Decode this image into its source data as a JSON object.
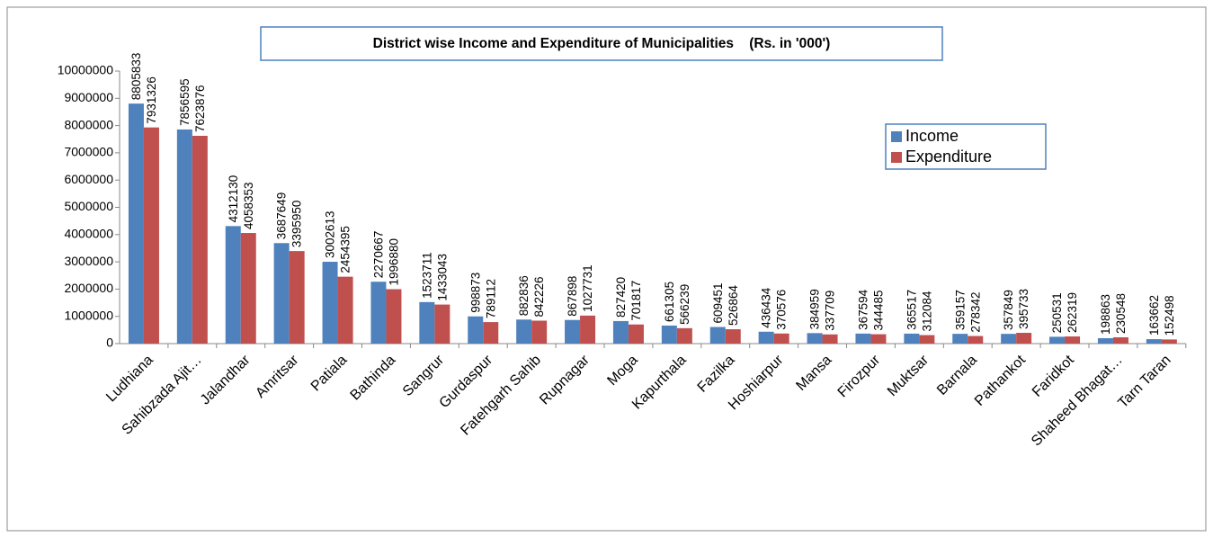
{
  "chart_data": {
    "type": "bar",
    "title": "District wise Income and Expenditure of Municipalities    (Rs. in '000')",
    "categories": [
      "Ludhiana",
      "Sahibzada Ajit…",
      "Jalandhar",
      "Amritsar",
      "Patiala",
      "Bathinda",
      "Sangrur",
      "Gurdaspur",
      "Fatehgarh Sahib",
      "Rupnagar",
      "Moga",
      "Kapurthala",
      "Fazilka",
      "Hoshiarpur",
      "Mansa",
      "Firozpur",
      "Muktsar",
      "Barnala",
      "Pathankot",
      "Faridkot",
      "Shaheed Bhagat…",
      "Tarn Taran"
    ],
    "series": [
      {
        "name": "Income",
        "color": "#4f81bd",
        "values": [
          8805833,
          7856595,
          4312130,
          3687649,
          3002613,
          2270667,
          1523711,
          998873,
          882836,
          867898,
          827420,
          661305,
          609451,
          436434,
          384959,
          367594,
          365517,
          359157,
          357849,
          250531,
          198863,
          163662
        ]
      },
      {
        "name": "Expenditure",
        "color": "#c0504d",
        "values": [
          7931326,
          7623876,
          4058353,
          3395950,
          2454395,
          1996880,
          1433043,
          789112,
          842226,
          1027731,
          701817,
          566239,
          526864,
          370576,
          337709,
          344485,
          312084,
          278342,
          395733,
          262319,
          230548,
          152498
        ]
      }
    ],
    "ylim": [
      0,
      10000000
    ],
    "yticks": [
      0,
      1000000,
      2000000,
      3000000,
      4000000,
      5000000,
      6000000,
      7000000,
      8000000,
      9000000,
      10000000
    ],
    "legend": "upper right",
    "grid": false
  }
}
